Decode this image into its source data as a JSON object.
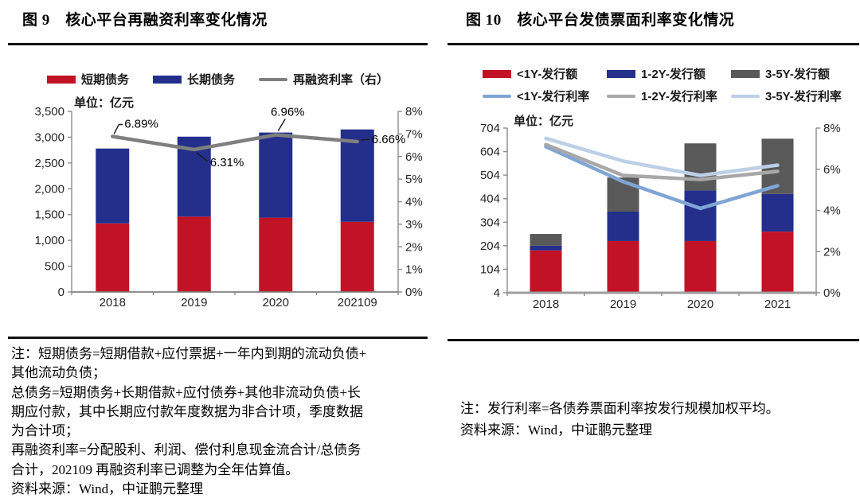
{
  "figure9": {
    "title": "图 9　核心平台再融资利率变化情况",
    "unit": "单位：亿元",
    "note_lines": [
      "注：短期债务=短期借款+应付票据+一年内到期的流动负债+",
      "其他流动负债；",
      "总债务=短期债务+长期借款+应付债券+其他非流动负债+长",
      "期应付款，其中长期应付款年度数据为非合计项，季度数据",
      "为合计项；",
      "再融资利率=分配股利、利润、偿付利息现金流合计/总债务",
      "合计，202109 再融资利率已调整为全年估算值。",
      "资料来源：Wind，中证鹏元整理"
    ]
  },
  "figure10": {
    "title": "图 10　核心平台发债票面利率变化情况",
    "unit": "单位：亿元",
    "note_lines": [
      "注：发行利率=各债券票面利率按发行规模加权平均。",
      "资料来源：Wind，中证鹏元整理"
    ]
  },
  "chart_data": [
    {
      "id": "fig9",
      "type": "bar",
      "subtype": "stacked-bar-with-line",
      "title": "核心平台再融资利率变化情况",
      "unit": "亿元",
      "categories": [
        "2018",
        "2019",
        "2020",
        "202109"
      ],
      "series": [
        {
          "name": "短期债务",
          "kind": "bar",
          "axis": "left",
          "color": "#c11226",
          "values": [
            1330,
            1460,
            1440,
            1360
          ]
        },
        {
          "name": "长期债务",
          "kind": "bar",
          "axis": "left",
          "color": "#242f8c",
          "values": [
            1450,
            1550,
            1650,
            1790
          ]
        },
        {
          "name": "再融资利率（右）",
          "kind": "line",
          "axis": "right",
          "color": "#7f7f7f",
          "values": [
            6.89,
            6.31,
            6.96,
            6.66
          ],
          "point_labels": [
            "6.89%",
            "6.31%",
            "6.96%",
            "6.66%"
          ]
        }
      ],
      "left_axis": {
        "min": 0,
        "max": 3500,
        "tick_labels": [
          "3,500",
          "3,000",
          "2,500",
          "2,000",
          "1,500",
          "1,000",
          "500",
          "0"
        ]
      },
      "right_axis": {
        "min": 0,
        "max": 8,
        "tick_labels": [
          "8%",
          "7%",
          "6%",
          "5%",
          "4%",
          "3%",
          "2%",
          "1%",
          "0%"
        ]
      },
      "legend_position": "top",
      "grid": false
    },
    {
      "id": "fig10",
      "type": "bar",
      "subtype": "stacked-bar-with-lines",
      "title": "核心平台发债票面利率变化情况",
      "unit": "亿元",
      "categories": [
        "2018",
        "2019",
        "2020",
        "2021"
      ],
      "series": [
        {
          "name": "<1Y-发行额",
          "kind": "bar",
          "axis": "left",
          "color": "#c11226",
          "values": [
            180,
            220,
            220,
            260
          ]
        },
        {
          "name": "1-2Y-发行额",
          "kind": "bar",
          "axis": "left",
          "color": "#242f8c",
          "values": [
            20,
            125,
            215,
            160
          ]
        },
        {
          "name": "3-5Y-发行额",
          "kind": "bar",
          "axis": "left",
          "color": "#595959",
          "values": [
            50,
            145,
            200,
            235
          ]
        },
        {
          "name": "<1Y-发行利率",
          "kind": "line",
          "axis": "right",
          "color": "#7fa5d5",
          "values": [
            7.1,
            5.4,
            4.1,
            5.2
          ]
        },
        {
          "name": "1-2Y-发行利率",
          "kind": "line",
          "axis": "right",
          "color": "#a8a8a8",
          "values": [
            7.2,
            5.7,
            5.5,
            5.9
          ]
        },
        {
          "name": "3-5Y-发行利率",
          "kind": "line",
          "axis": "right",
          "color": "#bccfe6",
          "values": [
            7.5,
            6.4,
            5.7,
            6.2
          ]
        }
      ],
      "left_axis": {
        "min": 4,
        "max": 704,
        "tick_labels": [
          "704",
          "604",
          "504",
          "404",
          "304",
          "204",
          "104",
          "4"
        ]
      },
      "right_axis": {
        "min": 0,
        "max": 8,
        "tick_labels": [
          "8%",
          "6%",
          "4%",
          "2%",
          "0%"
        ]
      },
      "legend_position": "top",
      "grid": false
    }
  ]
}
